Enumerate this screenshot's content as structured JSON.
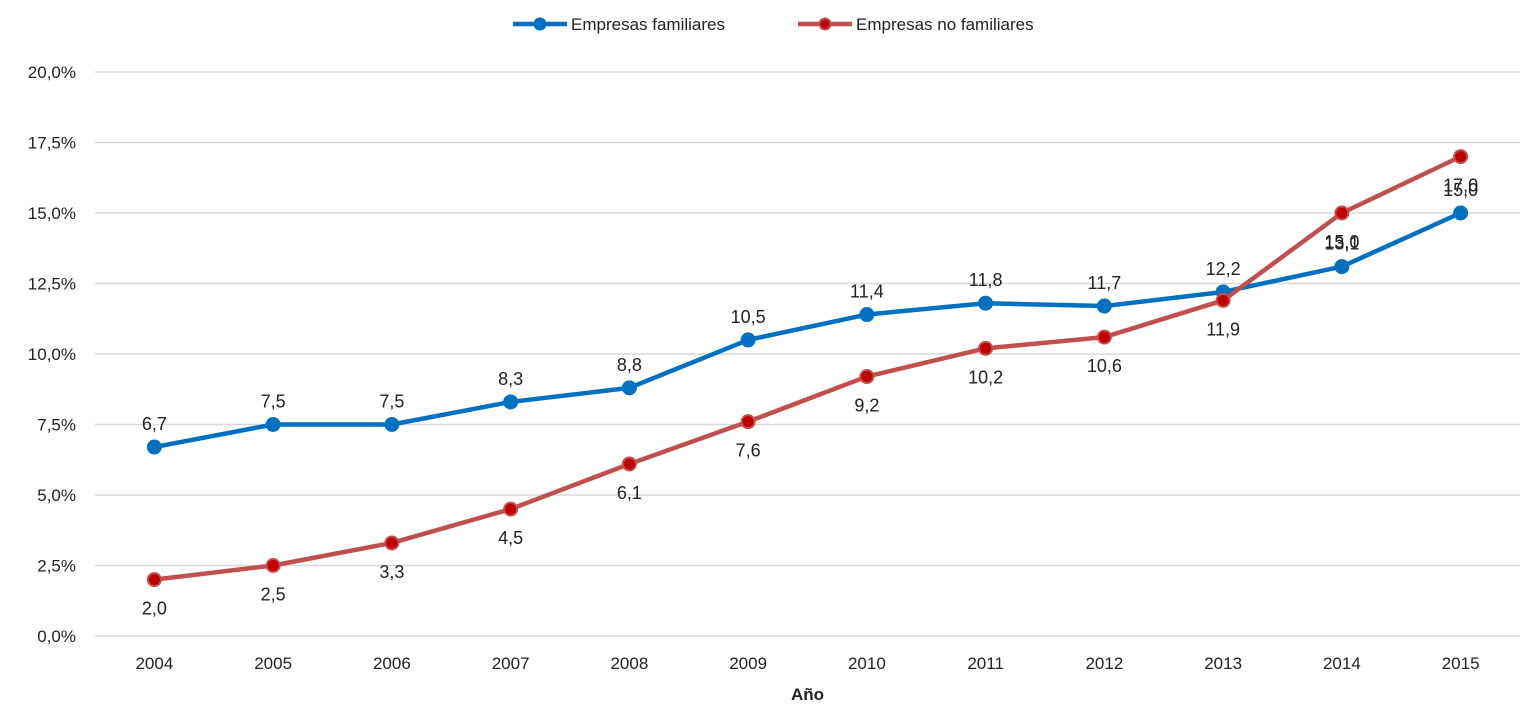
{
  "chart_data": {
    "type": "line",
    "title": "",
    "xlabel": "Año",
    "ylabel": "",
    "categories": [
      "2004",
      "2005",
      "2006",
      "2007",
      "2008",
      "2009",
      "2010",
      "2011",
      "2012",
      "2013",
      "2014",
      "2015"
    ],
    "y_ticks": [
      "0,0%",
      "2,5%",
      "5,0%",
      "7,5%",
      "10,0%",
      "12,5%",
      "15,0%",
      "17,5%",
      "20,0%"
    ],
    "ylim": [
      0,
      20
    ],
    "grid": true,
    "legend_position": "top-center",
    "series": [
      {
        "name": "Empresas familiares",
        "color": "#0070C0",
        "marker_color": "#0070C0",
        "label_position": "above",
        "values": [
          6.7,
          7.5,
          7.5,
          8.3,
          8.8,
          10.5,
          11.4,
          11.8,
          11.7,
          12.2,
          13.1,
          15.0
        ],
        "labels": [
          "6,7",
          "7,5",
          "7,5",
          "8,3",
          "8,8",
          "10,5",
          "11,4",
          "11,8",
          "11,7",
          "12,2",
          "13,1",
          "15,0"
        ]
      },
      {
        "name": "Empresas no familiares",
        "color": "#C0504D",
        "marker_color": "#C00000",
        "label_position": "below",
        "values": [
          2.0,
          2.5,
          3.3,
          4.5,
          6.1,
          7.6,
          9.2,
          10.2,
          10.6,
          11.9,
          15.0,
          17.0
        ],
        "labels": [
          "2,0",
          "2,5",
          "3,3",
          "4,5",
          "6,1",
          "7,6",
          "9,2",
          "10,2",
          "10,6",
          "11,9",
          "15,0",
          "17,0"
        ]
      }
    ]
  }
}
